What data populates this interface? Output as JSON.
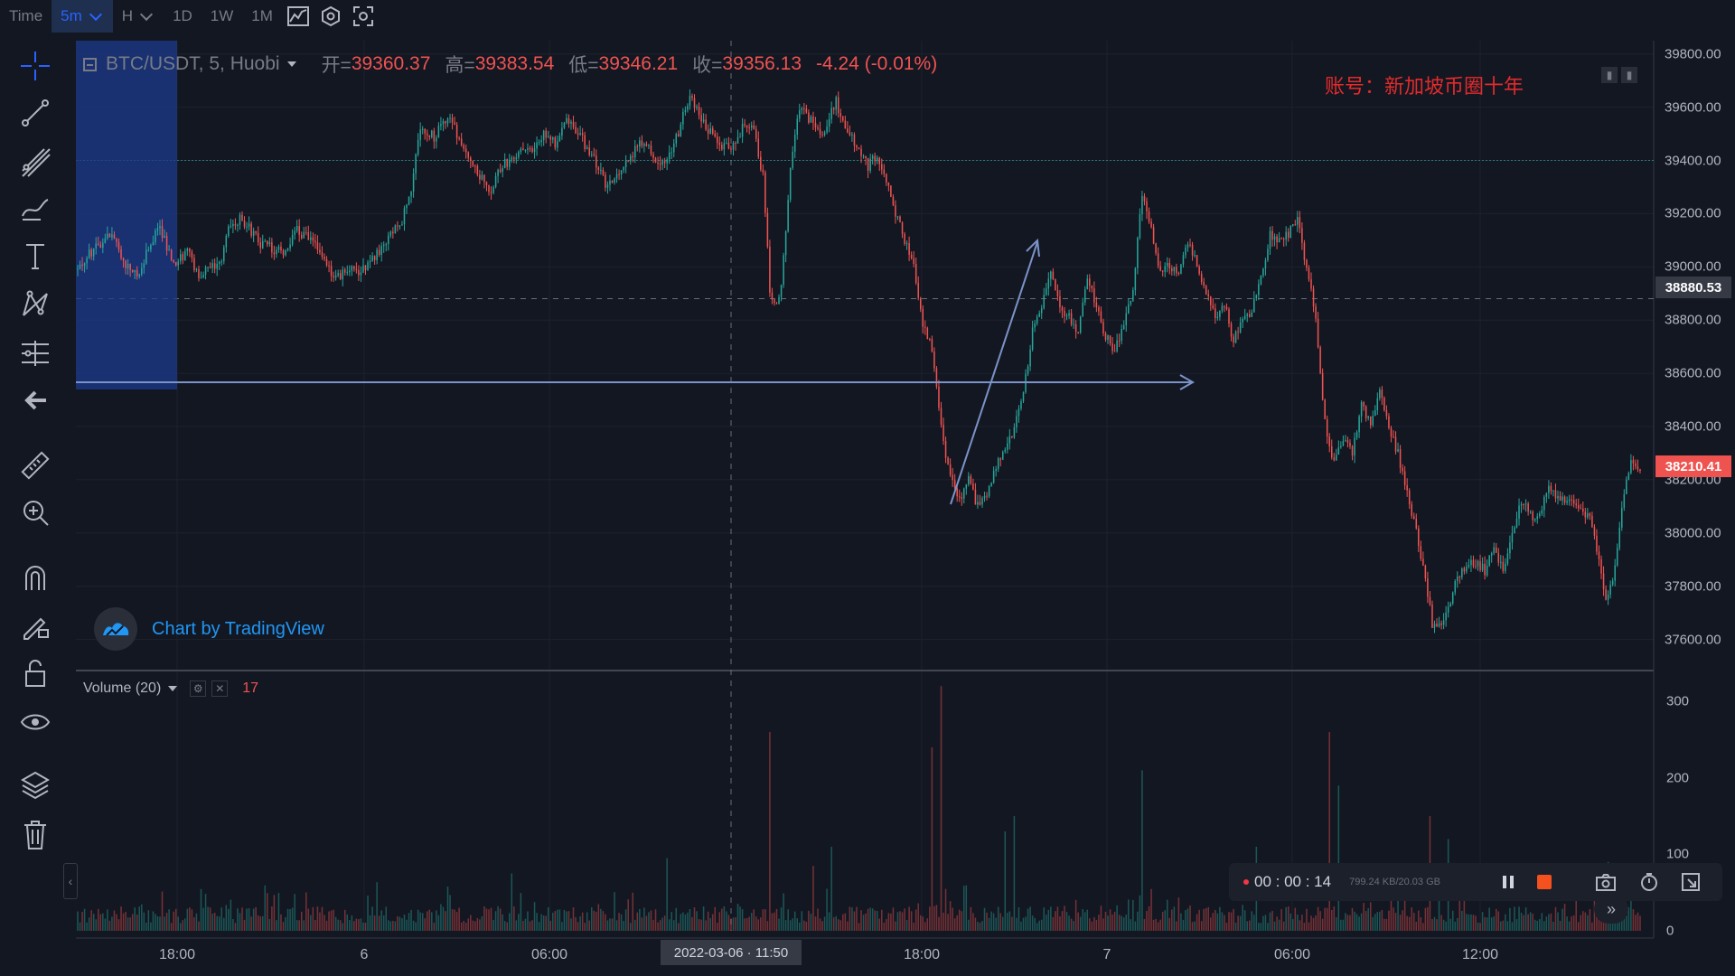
{
  "toolbar": {
    "items": [
      "Time",
      "5m",
      "H",
      "1D",
      "1W",
      "1M"
    ],
    "active": "5m"
  },
  "legend": {
    "symbol": "BTC/USDT, 5, Huobi",
    "open_label": "开=",
    "open": "39360.37",
    "high_label": "高=",
    "high": "39383.54",
    "low_label": "低=",
    "low": "39346.21",
    "close_label": "收=",
    "close": "39356.13",
    "change": "-4.24 (-0.01%)"
  },
  "watermark": "账号：新加坡币圈十年",
  "branding": "Chart by TradingView",
  "volume_legend": {
    "label": "Volume (20)",
    "value": "17"
  },
  "recorder": {
    "time": "00 : 00 : 14",
    "size": "799.24 KB/20.03 GB"
  },
  "crosshair": {
    "time_label": "2022-03-06 · 11:50",
    "price_label": "38880.53"
  },
  "last_price": "38210.41",
  "colors": {
    "up": "#26a69a",
    "down": "#ef5350",
    "accent": "#2962ff",
    "background": "#131722"
  },
  "chart_data": [
    {
      "type": "candlestick",
      "title": "BTC/USDT, 5, Huobi",
      "x_ticks": [
        "18:00",
        "6",
        "06:00",
        "18:00",
        "7",
        "06:00",
        "12:00"
      ],
      "y_ticks": [
        "39800.00",
        "39600.00",
        "39400.00",
        "39200.00",
        "39000.00",
        "38800.00",
        "38600.00",
        "38400.00",
        "38200.00",
        "38000.00",
        "37800.00",
        "37600.00"
      ],
      "ylim": [
        37490,
        39850
      ],
      "price_path": [
        [
          0,
          38990
        ],
        [
          8,
          39080
        ],
        [
          15,
          39120
        ],
        [
          20,
          39020
        ],
        [
          26,
          38960
        ],
        [
          32,
          39100
        ],
        [
          36,
          39150
        ],
        [
          42,
          39010
        ],
        [
          48,
          39060
        ],
        [
          54,
          38950
        ],
        [
          58,
          39010
        ],
        [
          62,
          39000
        ],
        [
          66,
          39160
        ],
        [
          72,
          39180
        ],
        [
          80,
          39090
        ],
        [
          90,
          39050
        ],
        [
          96,
          39140
        ],
        [
          102,
          39100
        ],
        [
          108,
          39040
        ],
        [
          112,
          38960
        ],
        [
          118,
          38980
        ],
        [
          124,
          38990
        ],
        [
          130,
          39040
        ],
        [
          136,
          39100
        ],
        [
          142,
          39180
        ],
        [
          146,
          39300
        ],
        [
          150,
          39520
        ],
        [
          156,
          39490
        ],
        [
          162,
          39560
        ],
        [
          168,
          39470
        ],
        [
          174,
          39380
        ],
        [
          180,
          39280
        ],
        [
          186,
          39380
        ],
        [
          192,
          39420
        ],
        [
          198,
          39440
        ],
        [
          204,
          39500
        ],
        [
          210,
          39460
        ],
        [
          214,
          39560
        ],
        [
          220,
          39490
        ],
        [
          226,
          39400
        ],
        [
          232,
          39300
        ],
        [
          236,
          39350
        ],
        [
          242,
          39420
        ],
        [
          248,
          39480
        ],
        [
          254,
          39390
        ],
        [
          260,
          39420
        ],
        [
          264,
          39540
        ],
        [
          268,
          39640
        ],
        [
          272,
          39580
        ],
        [
          278,
          39490
        ],
        [
          282,
          39450
        ],
        [
          288,
          39460
        ],
        [
          292,
          39550
        ],
        [
          296,
          39510
        ],
        [
          300,
          39340
        ],
        [
          303,
          38920
        ],
        [
          305,
          38850
        ],
        [
          308,
          38930
        ],
        [
          312,
          39360
        ],
        [
          316,
          39600
        ],
        [
          320,
          39560
        ],
        [
          326,
          39500
        ],
        [
          332,
          39620
        ],
        [
          336,
          39520
        ],
        [
          342,
          39450
        ],
        [
          346,
          39380
        ],
        [
          350,
          39420
        ],
        [
          354,
          39320
        ],
        [
          358,
          39200
        ],
        [
          362,
          39100
        ],
        [
          366,
          39020
        ],
        [
          370,
          38780
        ],
        [
          374,
          38700
        ],
        [
          378,
          38400
        ],
        [
          382,
          38200
        ],
        [
          386,
          38120
        ],
        [
          390,
          38200
        ],
        [
          394,
          38100
        ],
        [
          398,
          38150
        ],
        [
          402,
          38250
        ],
        [
          406,
          38300
        ],
        [
          410,
          38400
        ],
        [
          414,
          38520
        ],
        [
          418,
          38760
        ],
        [
          422,
          38850
        ],
        [
          426,
          38970
        ],
        [
          430,
          38860
        ],
        [
          434,
          38810
        ],
        [
          438,
          38760
        ],
        [
          442,
          38960
        ],
        [
          446,
          38840
        ],
        [
          450,
          38740
        ],
        [
          454,
          38680
        ],
        [
          458,
          38800
        ],
        [
          462,
          38900
        ],
        [
          466,
          39280
        ],
        [
          470,
          39140
        ],
        [
          474,
          38980
        ],
        [
          478,
          39000
        ],
        [
          482,
          38980
        ],
        [
          486,
          39080
        ],
        [
          490,
          39020
        ],
        [
          494,
          38900
        ],
        [
          498,
          38800
        ],
        [
          502,
          38860
        ],
        [
          506,
          38720
        ],
        [
          510,
          38800
        ],
        [
          514,
          38840
        ],
        [
          518,
          38960
        ],
        [
          522,
          39120
        ],
        [
          526,
          39100
        ],
        [
          530,
          39120
        ],
        [
          534,
          39180
        ],
        [
          538,
          39000
        ],
        [
          542,
          38800
        ],
        [
          546,
          38420
        ],
        [
          550,
          38260
        ],
        [
          554,
          38360
        ],
        [
          558,
          38300
        ],
        [
          562,
          38480
        ],
        [
          566,
          38400
        ],
        [
          570,
          38550
        ],
        [
          574,
          38400
        ],
        [
          578,
          38300
        ],
        [
          582,
          38150
        ],
        [
          586,
          38000
        ],
        [
          590,
          37820
        ],
        [
          593,
          37660
        ],
        [
          596,
          37650
        ],
        [
          600,
          37720
        ],
        [
          604,
          37840
        ],
        [
          610,
          37900
        ],
        [
          616,
          37860
        ],
        [
          620,
          37940
        ],
        [
          624,
          37860
        ],
        [
          628,
          38000
        ],
        [
          632,
          38120
        ],
        [
          638,
          38050
        ],
        [
          644,
          38160
        ],
        [
          650,
          38120
        ],
        [
          656,
          38100
        ],
        [
          662,
          38060
        ],
        [
          666,
          37900
        ],
        [
          669,
          37760
        ],
        [
          672,
          37820
        ],
        [
          676,
          38100
        ],
        [
          680,
          38280
        ],
        [
          684,
          38220
        ]
      ],
      "volume": {
        "name": "Volume (20)",
        "ylim": [
          0,
          325
        ],
        "y_ticks": [
          "300",
          "200",
          "100",
          "0"
        ]
      }
    }
  ]
}
